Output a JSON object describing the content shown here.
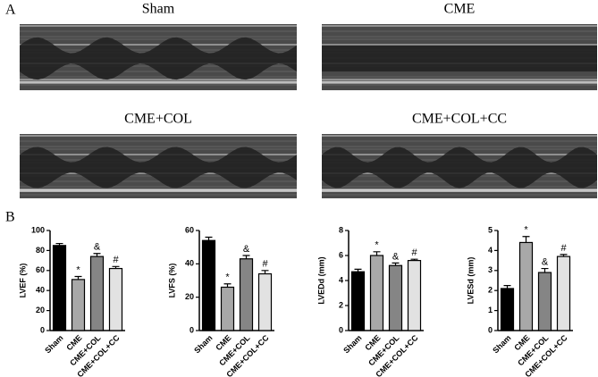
{
  "panel_a": {
    "label": "A",
    "images": [
      {
        "title": "Sham"
      },
      {
        "title": "CME"
      },
      {
        "title": "CME+COL"
      },
      {
        "title": "CME+COL+CC"
      }
    ]
  },
  "panel_b_label": "B",
  "chart_data": [
    {
      "type": "bar",
      "y_label": "LVEF (%)",
      "categories": [
        "Sham",
        "CME",
        "CME+COL",
        "CME+COL+CC"
      ],
      "values": [
        85,
        51,
        74,
        62
      ],
      "errors": [
        2,
        3,
        3,
        2
      ],
      "annotations": [
        null,
        "*",
        "&",
        "#"
      ],
      "colors": [
        "#000000",
        "#a8a8a8",
        "#858585",
        "#e2e2e2"
      ],
      "ylim": [
        0,
        100
      ],
      "yticks": [
        0,
        20,
        40,
        60,
        80,
        100
      ]
    },
    {
      "type": "bar",
      "y_label": "LVFS (%)",
      "categories": [
        "Sham",
        "CME",
        "CME+COL",
        "CME+COL+CC"
      ],
      "values": [
        54,
        26,
        43,
        34
      ],
      "errors": [
        2,
        2,
        2,
        2
      ],
      "annotations": [
        null,
        "*",
        "&",
        "#"
      ],
      "colors": [
        "#000000",
        "#a8a8a8",
        "#858585",
        "#e2e2e2"
      ],
      "ylim": [
        0,
        60
      ],
      "yticks": [
        0,
        20,
        40,
        60
      ]
    },
    {
      "type": "bar",
      "y_label": "LVEDd (mm)",
      "categories": [
        "Sham",
        "CME",
        "CME+COL",
        "CME+COL+CC"
      ],
      "values": [
        4.7,
        6.0,
        5.2,
        5.6
      ],
      "errors": [
        0.2,
        0.3,
        0.2,
        0.1
      ],
      "annotations": [
        null,
        "*",
        "&",
        "#"
      ],
      "colors": [
        "#000000",
        "#a8a8a8",
        "#858585",
        "#e2e2e2"
      ],
      "ylim": [
        0,
        8
      ],
      "yticks": [
        0,
        2,
        4,
        6,
        8
      ]
    },
    {
      "type": "bar",
      "y_label": "LVESd (mm)",
      "categories": [
        "Sham",
        "CME",
        "CME+COL",
        "CME+COL+CC"
      ],
      "values": [
        2.1,
        4.4,
        2.9,
        3.7
      ],
      "errors": [
        0.15,
        0.3,
        0.2,
        0.1
      ],
      "annotations": [
        null,
        "*",
        "&",
        "#"
      ],
      "colors": [
        "#000000",
        "#a8a8a8",
        "#858585",
        "#e2e2e2"
      ],
      "ylim": [
        0,
        5
      ],
      "yticks": [
        0,
        1,
        2,
        3,
        4,
        5
      ]
    }
  ]
}
